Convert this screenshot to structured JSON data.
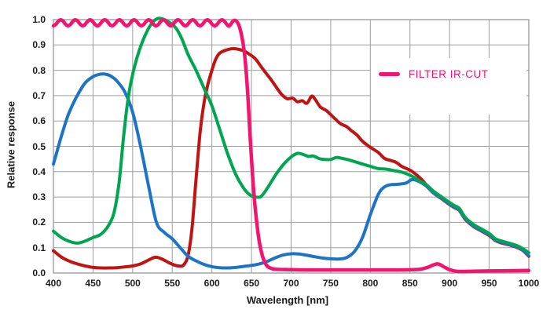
{
  "chart_data": {
    "type": "line",
    "title": "",
    "xlabel": "Wavelength [nm]",
    "ylabel": "Relative response",
    "xlim": [
      400,
      1000
    ],
    "ylim": [
      0.0,
      1.0
    ],
    "grid": true,
    "x_ticks": [
      "400",
      "450",
      "500",
      "550",
      "600",
      "650",
      "700",
      "750",
      "800",
      "850",
      "900",
      "950",
      "1000"
    ],
    "y_ticks": [
      "1.0",
      "0.9",
      "0.8",
      "0.7",
      "0.6",
      "0.5",
      "0.4",
      "0.3",
      "0.2",
      "0.1",
      "0.0"
    ],
    "colors": {
      "grid": "#9e9e9e",
      "axis_text": "#1c1c1c",
      "blue_channel": "#1d73c6",
      "green_channel": "#00a551",
      "red_channel": "#c01414",
      "ir_cut_filter": "#f2146e"
    },
    "legend": {
      "label": "FILTER IR-CUT",
      "color": "#f2146e",
      "position": "top-right"
    },
    "series": [
      {
        "name": "red-channel",
        "color": "#c01414",
        "width": 4,
        "points": [
          [
            400,
            0.088
          ],
          [
            410,
            0.063
          ],
          [
            420,
            0.047
          ],
          [
            430,
            0.036
          ],
          [
            440,
            0.028
          ],
          [
            450,
            0.022
          ],
          [
            460,
            0.02
          ],
          [
            470,
            0.02
          ],
          [
            480,
            0.021
          ],
          [
            490,
            0.024
          ],
          [
            500,
            0.028
          ],
          [
            510,
            0.036
          ],
          [
            520,
            0.051
          ],
          [
            528,
            0.062
          ],
          [
            535,
            0.058
          ],
          [
            545,
            0.042
          ],
          [
            552,
            0.032
          ],
          [
            558,
            0.028
          ],
          [
            564,
            0.031
          ],
          [
            570,
            0.07
          ],
          [
            575,
            0.18
          ],
          [
            580,
            0.37
          ],
          [
            585,
            0.55
          ],
          [
            590,
            0.67
          ],
          [
            595,
            0.745
          ],
          [
            600,
            0.8
          ],
          [
            605,
            0.845
          ],
          [
            610,
            0.868
          ],
          [
            618,
            0.88
          ],
          [
            625,
            0.885
          ],
          [
            632,
            0.884
          ],
          [
            640,
            0.877
          ],
          [
            648,
            0.862
          ],
          [
            655,
            0.845
          ],
          [
            662,
            0.815
          ],
          [
            668,
            0.79
          ],
          [
            675,
            0.762
          ],
          [
            682,
            0.73
          ],
          [
            688,
            0.705
          ],
          [
            695,
            0.688
          ],
          [
            702,
            0.69
          ],
          [
            708,
            0.676
          ],
          [
            714,
            0.68
          ],
          [
            720,
            0.67
          ],
          [
            726,
            0.698
          ],
          [
            731,
            0.682
          ],
          [
            737,
            0.655
          ],
          [
            744,
            0.642
          ],
          [
            750,
            0.625
          ],
          [
            756,
            0.607
          ],
          [
            762,
            0.59
          ],
          [
            770,
            0.578
          ],
          [
            776,
            0.562
          ],
          [
            783,
            0.545
          ],
          [
            790,
            0.52
          ],
          [
            800,
            0.496
          ],
          [
            810,
            0.476
          ],
          [
            818,
            0.452
          ],
          [
            826,
            0.444
          ],
          [
            833,
            0.436
          ],
          [
            840,
            0.42
          ],
          [
            850,
            0.406
          ],
          [
            858,
            0.388
          ],
          [
            865,
            0.368
          ],
          [
            872,
            0.343
          ],
          [
            880,
            0.315
          ],
          [
            890,
            0.293
          ],
          [
            900,
            0.27
          ],
          [
            906,
            0.258
          ],
          [
            912,
            0.248
          ],
          [
            920,
            0.211
          ],
          [
            930,
            0.184
          ],
          [
            940,
            0.166
          ],
          [
            950,
            0.148
          ],
          [
            958,
            0.128
          ],
          [
            965,
            0.119
          ],
          [
            975,
            0.111
          ],
          [
            985,
            0.101
          ],
          [
            992,
            0.09
          ],
          [
            1000,
            0.066
          ]
        ]
      },
      {
        "name": "blue-channel",
        "color": "#1d73c6",
        "width": 4,
        "points": [
          [
            400,
            0.43
          ],
          [
            405,
            0.485
          ],
          [
            410,
            0.54
          ],
          [
            415,
            0.59
          ],
          [
            420,
            0.635
          ],
          [
            430,
            0.7
          ],
          [
            440,
            0.75
          ],
          [
            450,
            0.775
          ],
          [
            458,
            0.784
          ],
          [
            465,
            0.785
          ],
          [
            472,
            0.778
          ],
          [
            480,
            0.758
          ],
          [
            490,
            0.715
          ],
          [
            500,
            0.635
          ],
          [
            510,
            0.5
          ],
          [
            520,
            0.345
          ],
          [
            530,
            0.2
          ],
          [
            540,
            0.16
          ],
          [
            550,
            0.135
          ],
          [
            560,
            0.1
          ],
          [
            570,
            0.066
          ],
          [
            580,
            0.048
          ],
          [
            590,
            0.034
          ],
          [
            600,
            0.025
          ],
          [
            610,
            0.021
          ],
          [
            620,
            0.02
          ],
          [
            630,
            0.022
          ],
          [
            640,
            0.026
          ],
          [
            650,
            0.03
          ],
          [
            660,
            0.036
          ],
          [
            670,
            0.046
          ],
          [
            680,
            0.06
          ],
          [
            690,
            0.071
          ],
          [
            700,
            0.076
          ],
          [
            710,
            0.075
          ],
          [
            720,
            0.07
          ],
          [
            730,
            0.064
          ],
          [
            740,
            0.059
          ],
          [
            750,
            0.056
          ],
          [
            760,
            0.055
          ],
          [
            770,
            0.061
          ],
          [
            780,
            0.085
          ],
          [
            790,
            0.14
          ],
          [
            800,
            0.23
          ],
          [
            810,
            0.31
          ],
          [
            817,
            0.338
          ],
          [
            825,
            0.348
          ],
          [
            835,
            0.35
          ],
          [
            845,
            0.355
          ],
          [
            852,
            0.368
          ],
          [
            858,
            0.366
          ],
          [
            865,
            0.355
          ],
          [
            870,
            0.345
          ],
          [
            880,
            0.316
          ],
          [
            890,
            0.295
          ],
          [
            900,
            0.272
          ],
          [
            906,
            0.26
          ],
          [
            912,
            0.25
          ],
          [
            920,
            0.213
          ],
          [
            930,
            0.186
          ],
          [
            940,
            0.168
          ],
          [
            950,
            0.151
          ],
          [
            958,
            0.13
          ],
          [
            965,
            0.122
          ],
          [
            975,
            0.113
          ],
          [
            985,
            0.103
          ],
          [
            992,
            0.092
          ],
          [
            1000,
            0.068
          ]
        ]
      },
      {
        "name": "green-channel",
        "color": "#00a551",
        "width": 4,
        "points": [
          [
            400,
            0.165
          ],
          [
            410,
            0.14
          ],
          [
            420,
            0.125
          ],
          [
            430,
            0.118
          ],
          [
            440,
            0.126
          ],
          [
            450,
            0.14
          ],
          [
            460,
            0.153
          ],
          [
            470,
            0.19
          ],
          [
            477,
            0.245
          ],
          [
            483,
            0.36
          ],
          [
            488,
            0.52
          ],
          [
            493,
            0.66
          ],
          [
            498,
            0.755
          ],
          [
            505,
            0.845
          ],
          [
            512,
            0.91
          ],
          [
            520,
            0.965
          ],
          [
            527,
            0.995
          ],
          [
            533,
            1.005
          ],
          [
            540,
            1.0
          ],
          [
            548,
            0.985
          ],
          [
            555,
            0.965
          ],
          [
            562,
            0.925
          ],
          [
            570,
            0.862
          ],
          [
            580,
            0.8
          ],
          [
            590,
            0.73
          ],
          [
            600,
            0.66
          ],
          [
            610,
            0.565
          ],
          [
            620,
            0.47
          ],
          [
            630,
            0.39
          ],
          [
            640,
            0.335
          ],
          [
            648,
            0.308
          ],
          [
            655,
            0.3
          ],
          [
            662,
            0.302
          ],
          [
            670,
            0.335
          ],
          [
            680,
            0.385
          ],
          [
            690,
            0.427
          ],
          [
            700,
            0.458
          ],
          [
            708,
            0.472
          ],
          [
            715,
            0.468
          ],
          [
            722,
            0.46
          ],
          [
            728,
            0.462
          ],
          [
            735,
            0.452
          ],
          [
            742,
            0.448
          ],
          [
            750,
            0.448
          ],
          [
            757,
            0.456
          ],
          [
            765,
            0.452
          ],
          [
            772,
            0.447
          ],
          [
            780,
            0.44
          ],
          [
            790,
            0.43
          ],
          [
            800,
            0.421
          ],
          [
            810,
            0.412
          ],
          [
            820,
            0.41
          ],
          [
            830,
            0.404
          ],
          [
            840,
            0.398
          ],
          [
            850,
            0.386
          ],
          [
            858,
            0.372
          ],
          [
            865,
            0.358
          ],
          [
            870,
            0.35
          ],
          [
            880,
            0.322
          ],
          [
            890,
            0.3
          ],
          [
            900,
            0.278
          ],
          [
            906,
            0.266
          ],
          [
            912,
            0.256
          ],
          [
            920,
            0.219
          ],
          [
            930,
            0.192
          ],
          [
            940,
            0.174
          ],
          [
            950,
            0.156
          ],
          [
            958,
            0.135
          ],
          [
            965,
            0.127
          ],
          [
            975,
            0.118
          ],
          [
            985,
            0.108
          ],
          [
            992,
            0.097
          ],
          [
            1000,
            0.08
          ]
        ]
      },
      {
        "name": "ir-cut-filter",
        "color": "#f2146e",
        "width": 4.5,
        "ripple": {
          "range": [
            400,
            624
          ],
          "step_nm": 3,
          "base": 0.9875,
          "amplitude": 0.012,
          "period_nm": 18.5,
          "phase": -1.5708
        },
        "points": [
          [
            628,
            0.997
          ],
          [
            633,
            0.985
          ],
          [
            637,
            0.945
          ],
          [
            641,
            0.87
          ],
          [
            645,
            0.72
          ],
          [
            648,
            0.55
          ],
          [
            651,
            0.4
          ],
          [
            654,
            0.28
          ],
          [
            657,
            0.19
          ],
          [
            660,
            0.12
          ],
          [
            664,
            0.065
          ],
          [
            668,
            0.035
          ],
          [
            672,
            0.022
          ],
          [
            680,
            0.015
          ],
          [
            700,
            0.013
          ],
          [
            730,
            0.012
          ],
          [
            760,
            0.012
          ],
          [
            800,
            0.012
          ],
          [
            830,
            0.012
          ],
          [
            855,
            0.013
          ],
          [
            865,
            0.016
          ],
          [
            872,
            0.022
          ],
          [
            878,
            0.03
          ],
          [
            884,
            0.036
          ],
          [
            888,
            0.033
          ],
          [
            893,
            0.024
          ],
          [
            900,
            0.013
          ],
          [
            908,
            0.007
          ],
          [
            916,
            0.006
          ],
          [
            930,
            0.007
          ],
          [
            950,
            0.008
          ],
          [
            975,
            0.009
          ],
          [
            1000,
            0.01
          ]
        ]
      }
    ]
  }
}
